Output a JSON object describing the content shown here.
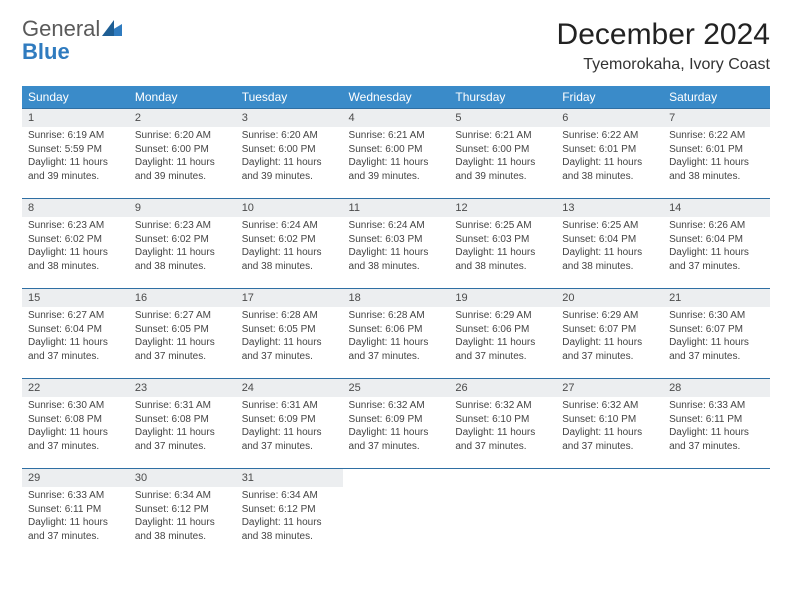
{
  "logo": {
    "general": "General",
    "blue": "Blue"
  },
  "title": "December 2024",
  "location": "Tyemorokaha, Ivory Coast",
  "colors": {
    "header_bg": "#3a8bc9",
    "header_text": "#ffffff",
    "daynum_bg": "#eceef0",
    "border": "#2f6fa3",
    "logo_blue": "#2f7bbf"
  },
  "weekdays": [
    "Sunday",
    "Monday",
    "Tuesday",
    "Wednesday",
    "Thursday",
    "Friday",
    "Saturday"
  ],
  "weeks": [
    [
      {
        "n": "1",
        "sr": "Sunrise: 6:19 AM",
        "ss": "Sunset: 5:59 PM",
        "dl": "Daylight: 11 hours and 39 minutes."
      },
      {
        "n": "2",
        "sr": "Sunrise: 6:20 AM",
        "ss": "Sunset: 6:00 PM",
        "dl": "Daylight: 11 hours and 39 minutes."
      },
      {
        "n": "3",
        "sr": "Sunrise: 6:20 AM",
        "ss": "Sunset: 6:00 PM",
        "dl": "Daylight: 11 hours and 39 minutes."
      },
      {
        "n": "4",
        "sr": "Sunrise: 6:21 AM",
        "ss": "Sunset: 6:00 PM",
        "dl": "Daylight: 11 hours and 39 minutes."
      },
      {
        "n": "5",
        "sr": "Sunrise: 6:21 AM",
        "ss": "Sunset: 6:00 PM",
        "dl": "Daylight: 11 hours and 39 minutes."
      },
      {
        "n": "6",
        "sr": "Sunrise: 6:22 AM",
        "ss": "Sunset: 6:01 PM",
        "dl": "Daylight: 11 hours and 38 minutes."
      },
      {
        "n": "7",
        "sr": "Sunrise: 6:22 AM",
        "ss": "Sunset: 6:01 PM",
        "dl": "Daylight: 11 hours and 38 minutes."
      }
    ],
    [
      {
        "n": "8",
        "sr": "Sunrise: 6:23 AM",
        "ss": "Sunset: 6:02 PM",
        "dl": "Daylight: 11 hours and 38 minutes."
      },
      {
        "n": "9",
        "sr": "Sunrise: 6:23 AM",
        "ss": "Sunset: 6:02 PM",
        "dl": "Daylight: 11 hours and 38 minutes."
      },
      {
        "n": "10",
        "sr": "Sunrise: 6:24 AM",
        "ss": "Sunset: 6:02 PM",
        "dl": "Daylight: 11 hours and 38 minutes."
      },
      {
        "n": "11",
        "sr": "Sunrise: 6:24 AM",
        "ss": "Sunset: 6:03 PM",
        "dl": "Daylight: 11 hours and 38 minutes."
      },
      {
        "n": "12",
        "sr": "Sunrise: 6:25 AM",
        "ss": "Sunset: 6:03 PM",
        "dl": "Daylight: 11 hours and 38 minutes."
      },
      {
        "n": "13",
        "sr": "Sunrise: 6:25 AM",
        "ss": "Sunset: 6:04 PM",
        "dl": "Daylight: 11 hours and 38 minutes."
      },
      {
        "n": "14",
        "sr": "Sunrise: 6:26 AM",
        "ss": "Sunset: 6:04 PM",
        "dl": "Daylight: 11 hours and 37 minutes."
      }
    ],
    [
      {
        "n": "15",
        "sr": "Sunrise: 6:27 AM",
        "ss": "Sunset: 6:04 PM",
        "dl": "Daylight: 11 hours and 37 minutes."
      },
      {
        "n": "16",
        "sr": "Sunrise: 6:27 AM",
        "ss": "Sunset: 6:05 PM",
        "dl": "Daylight: 11 hours and 37 minutes."
      },
      {
        "n": "17",
        "sr": "Sunrise: 6:28 AM",
        "ss": "Sunset: 6:05 PM",
        "dl": "Daylight: 11 hours and 37 minutes."
      },
      {
        "n": "18",
        "sr": "Sunrise: 6:28 AM",
        "ss": "Sunset: 6:06 PM",
        "dl": "Daylight: 11 hours and 37 minutes."
      },
      {
        "n": "19",
        "sr": "Sunrise: 6:29 AM",
        "ss": "Sunset: 6:06 PM",
        "dl": "Daylight: 11 hours and 37 minutes."
      },
      {
        "n": "20",
        "sr": "Sunrise: 6:29 AM",
        "ss": "Sunset: 6:07 PM",
        "dl": "Daylight: 11 hours and 37 minutes."
      },
      {
        "n": "21",
        "sr": "Sunrise: 6:30 AM",
        "ss": "Sunset: 6:07 PM",
        "dl": "Daylight: 11 hours and 37 minutes."
      }
    ],
    [
      {
        "n": "22",
        "sr": "Sunrise: 6:30 AM",
        "ss": "Sunset: 6:08 PM",
        "dl": "Daylight: 11 hours and 37 minutes."
      },
      {
        "n": "23",
        "sr": "Sunrise: 6:31 AM",
        "ss": "Sunset: 6:08 PM",
        "dl": "Daylight: 11 hours and 37 minutes."
      },
      {
        "n": "24",
        "sr": "Sunrise: 6:31 AM",
        "ss": "Sunset: 6:09 PM",
        "dl": "Daylight: 11 hours and 37 minutes."
      },
      {
        "n": "25",
        "sr": "Sunrise: 6:32 AM",
        "ss": "Sunset: 6:09 PM",
        "dl": "Daylight: 11 hours and 37 minutes."
      },
      {
        "n": "26",
        "sr": "Sunrise: 6:32 AM",
        "ss": "Sunset: 6:10 PM",
        "dl": "Daylight: 11 hours and 37 minutes."
      },
      {
        "n": "27",
        "sr": "Sunrise: 6:32 AM",
        "ss": "Sunset: 6:10 PM",
        "dl": "Daylight: 11 hours and 37 minutes."
      },
      {
        "n": "28",
        "sr": "Sunrise: 6:33 AM",
        "ss": "Sunset: 6:11 PM",
        "dl": "Daylight: 11 hours and 37 minutes."
      }
    ],
    [
      {
        "n": "29",
        "sr": "Sunrise: 6:33 AM",
        "ss": "Sunset: 6:11 PM",
        "dl": "Daylight: 11 hours and 37 minutes."
      },
      {
        "n": "30",
        "sr": "Sunrise: 6:34 AM",
        "ss": "Sunset: 6:12 PM",
        "dl": "Daylight: 11 hours and 38 minutes."
      },
      {
        "n": "31",
        "sr": "Sunrise: 6:34 AM",
        "ss": "Sunset: 6:12 PM",
        "dl": "Daylight: 11 hours and 38 minutes."
      },
      null,
      null,
      null,
      null
    ]
  ]
}
